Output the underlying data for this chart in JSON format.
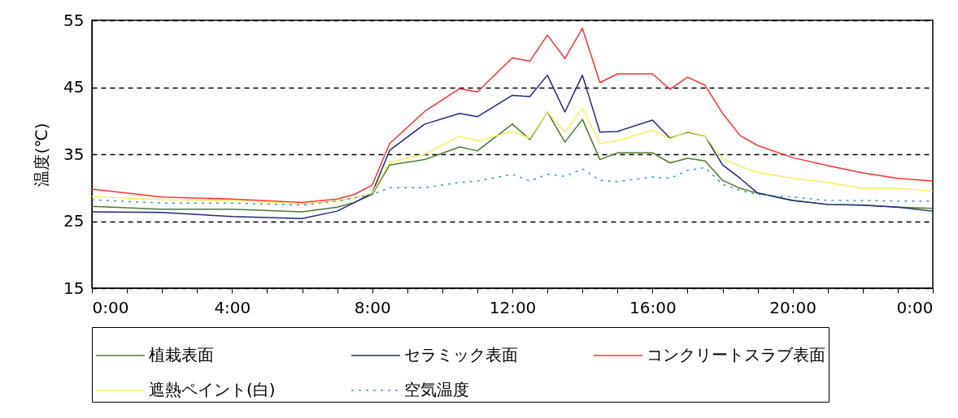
{
  "chart_data": {
    "type": "line",
    "ylabel": "温度(℃)",
    "xlim": [
      0,
      24
    ],
    "ylim": [
      15,
      55
    ],
    "xticks": [
      {
        "value": 0,
        "label": "0:00"
      },
      {
        "value": 1,
        "label": null
      },
      {
        "value": 2,
        "label": null
      },
      {
        "value": 3,
        "label": null
      },
      {
        "value": 4,
        "label": "4:00"
      },
      {
        "value": 5,
        "label": null
      },
      {
        "value": 6,
        "label": null
      },
      {
        "value": 7,
        "label": null
      },
      {
        "value": 8,
        "label": "8:00"
      },
      {
        "value": 9,
        "label": null
      },
      {
        "value": 10,
        "label": null
      },
      {
        "value": 11,
        "label": null
      },
      {
        "value": 12,
        "label": "12:00"
      },
      {
        "value": 13,
        "label": null
      },
      {
        "value": 14,
        "label": null
      },
      {
        "value": 15,
        "label": null
      },
      {
        "value": 16,
        "label": "16:00"
      },
      {
        "value": 17,
        "label": null
      },
      {
        "value": 18,
        "label": null
      },
      {
        "value": 19,
        "label": null
      },
      {
        "value": 20,
        "label": "20:00"
      },
      {
        "value": 21,
        "label": null
      },
      {
        "value": 22,
        "label": null
      },
      {
        "value": 23,
        "label": null
      },
      {
        "value": 24,
        "label": "0:00"
      }
    ],
    "yticks": [
      15,
      25,
      35,
      45,
      55
    ],
    "grid": "y",
    "legend": "bottom",
    "x": [
      0,
      2,
      4,
      6,
      7,
      7.5,
      8,
      8.5,
      9.5,
      10.5,
      11,
      12,
      12.5,
      13,
      13.5,
      14,
      14.5,
      15,
      16,
      16.5,
      17,
      17.5,
      18,
      18.5,
      19,
      20,
      21,
      22,
      23,
      24
    ],
    "series": [
      {
        "name": "植栽表面",
        "color": "#4a7a2e",
        "line_style": "solid",
        "values": [
          27.2,
          26.8,
          26.8,
          26.4,
          27.1,
          27.8,
          29.0,
          33.4,
          34.2,
          36.1,
          35.5,
          39.5,
          37.2,
          41.3,
          36.8,
          40.2,
          34.2,
          35.2,
          35.2,
          33.7,
          34.4,
          34.0,
          31.1,
          29.9,
          29.2,
          28.1,
          27.5,
          27.4,
          27.1,
          26.9
        ]
      },
      {
        "name": "セラミック表面",
        "color": "#1f2a7a",
        "line_style": "solid",
        "values": [
          26.4,
          26.3,
          25.7,
          25.4,
          26.5,
          27.8,
          29.2,
          35.6,
          39.5,
          41.1,
          40.6,
          43.8,
          43.6,
          46.8,
          41.3,
          46.8,
          38.3,
          38.4,
          40.1,
          37.4,
          38.3,
          37.7,
          33.4,
          31.4,
          29.2,
          28.1,
          27.5,
          27.4,
          27.1,
          26.5
        ]
      },
      {
        "name": "コンクリートスラブ表面",
        "color": "#ff3030",
        "line_style": "solid",
        "values": [
          29.8,
          28.6,
          28.3,
          27.8,
          28.3,
          29.0,
          30.4,
          36.6,
          41.4,
          44.8,
          44.3,
          49.4,
          48.9,
          52.8,
          49.3,
          53.8,
          45.7,
          47.0,
          47.0,
          44.7,
          46.5,
          45.3,
          41.1,
          37.8,
          36.3,
          34.5,
          33.3,
          32.2,
          31.4,
          31.0
        ]
      },
      {
        "name": "遮熱ペイント(白)",
        "color": "#f5f060",
        "line_style": "solid",
        "values": [
          28.7,
          28.2,
          28.1,
          27.6,
          28.0,
          28.5,
          29.2,
          33.8,
          35.0,
          37.7,
          37.0,
          38.4,
          37.4,
          41.3,
          38.3,
          41.9,
          36.6,
          37.0,
          38.6,
          37.3,
          38.4,
          37.7,
          34.4,
          33.2,
          32.3,
          31.4,
          30.8,
          29.9,
          29.9,
          29.5
        ]
      },
      {
        "name": "空気温度",
        "color": "#3399cc",
        "line_style": "dotted",
        "values": [
          28.2,
          27.7,
          27.7,
          27.4,
          28.0,
          28.5,
          29.0,
          30.0,
          30.0,
          30.8,
          31.0,
          32.0,
          31.0,
          32.0,
          31.7,
          32.8,
          31.1,
          30.9,
          31.6,
          31.4,
          32.6,
          33.0,
          30.5,
          29.6,
          29.0,
          28.6,
          28.1,
          28.1,
          28.0,
          28.0
        ]
      }
    ]
  }
}
